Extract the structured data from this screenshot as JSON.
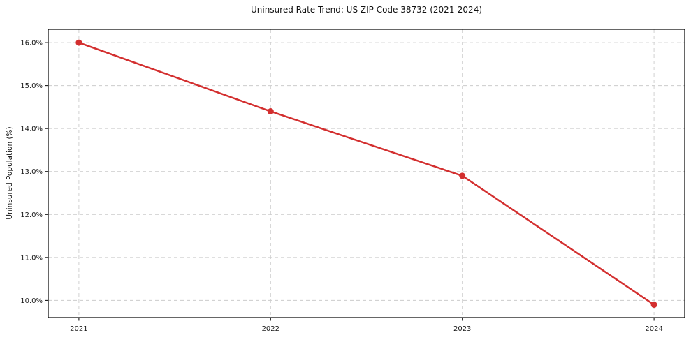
{
  "chart_data": {
    "type": "line",
    "title": "Uninsured Rate Trend: US ZIP Code 38732 (2021-2024)",
    "xlabel": "",
    "ylabel": "Uninsured Population (%)",
    "x": [
      2021,
      2022,
      2023,
      2024
    ],
    "values": [
      16.0,
      14.4,
      12.9,
      9.9
    ],
    "x_tick_labels": [
      "2021",
      "2022",
      "2023",
      "2024"
    ],
    "y_ticks": [
      10,
      11,
      12,
      13,
      14,
      15,
      16
    ],
    "y_tick_labels": [
      "10.0%",
      "11.0%",
      "12.0%",
      "13.0%",
      "14.0%",
      "15.0%",
      "16.0%"
    ],
    "xlim": [
      2020.84,
      2024.16
    ],
    "ylim": [
      9.6,
      16.31
    ],
    "grid": true,
    "legend": "none",
    "colors": {
      "line": "#d32f2f",
      "marker": "#d32f2f",
      "gridline": "#cccccc",
      "frame": "#000000",
      "tick": "#000000",
      "background": "#ffffff"
    }
  }
}
